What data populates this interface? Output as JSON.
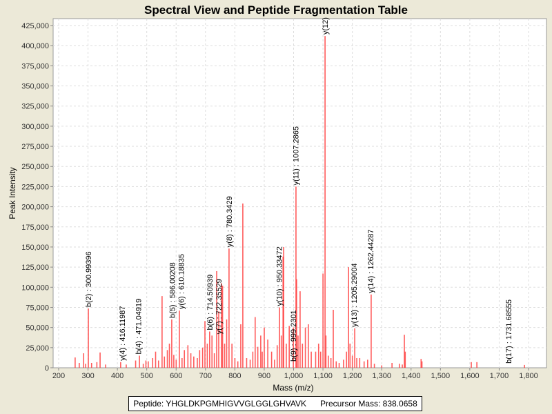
{
  "chart_data": {
    "type": "bar",
    "title": "Spectral View and Peptide Fragmentation Table",
    "xlabel": "Mass (m/z)",
    "ylabel": "Peak Intensity",
    "xlim": [
      180,
      1860
    ],
    "ylim": [
      0,
      433000
    ],
    "xticks": [
      200,
      300,
      400,
      500,
      600,
      700,
      800,
      900,
      1000,
      1100,
      1200,
      1300,
      1400,
      1500,
      1600,
      1700,
      1800
    ],
    "xtick_labels": [
      "200",
      "300",
      "400",
      "500",
      "600",
      "700",
      "800",
      "900",
      "1,000",
      "1,100",
      "1,200",
      "1,300",
      "1,400",
      "1,500",
      "1,600",
      "1,700",
      "1,800"
    ],
    "yticks": [
      0,
      25000,
      50000,
      75000,
      100000,
      125000,
      150000,
      175000,
      200000,
      225000,
      250000,
      275000,
      300000,
      325000,
      350000,
      375000,
      400000,
      425000
    ],
    "ytick_labels": [
      "0",
      "25,000",
      "50,000",
      "75,000",
      "100,000",
      "125,000",
      "150,000",
      "175,000",
      "200,000",
      "225,000",
      "250,000",
      "275,000",
      "300,000",
      "325,000",
      "350,000",
      "375,000",
      "400,000",
      "425,000"
    ],
    "grid": true,
    "color": "#ff4040",
    "peaks": [
      [
        256,
        12800
      ],
      [
        270,
        6000
      ],
      [
        285,
        18000
      ],
      [
        292,
        5000
      ],
      [
        301,
        73600
      ],
      [
        312,
        6000
      ],
      [
        330,
        7000
      ],
      [
        341,
        19000
      ],
      [
        360,
        4000
      ],
      [
        411,
        7000
      ],
      [
        430,
        4000
      ],
      [
        462,
        9000
      ],
      [
        475,
        15000
      ],
      [
        488,
        5000
      ],
      [
        497,
        9000
      ],
      [
        505,
        8000
      ],
      [
        520,
        12000
      ],
      [
        530,
        20000
      ],
      [
        540,
        9000
      ],
      [
        552,
        89000
      ],
      [
        560,
        14000
      ],
      [
        570,
        22000
      ],
      [
        577,
        30000
      ],
      [
        585,
        60000
      ],
      [
        592,
        16000
      ],
      [
        600,
        10000
      ],
      [
        611,
        71000
      ],
      [
        620,
        12000
      ],
      [
        628,
        22000
      ],
      [
        640,
        28000
      ],
      [
        650,
        18000
      ],
      [
        660,
        14000
      ],
      [
        672,
        12000
      ],
      [
        680,
        22000
      ],
      [
        690,
        25000
      ],
      [
        698,
        58000
      ],
      [
        706,
        30000
      ],
      [
        714,
        45000
      ],
      [
        722,
        40000
      ],
      [
        730,
        18000
      ],
      [
        738,
        120000
      ],
      [
        745,
        70000
      ],
      [
        754,
        105000
      ],
      [
        758,
        102000
      ],
      [
        765,
        30000
      ],
      [
        772,
        60000
      ],
      [
        780,
        148000
      ],
      [
        790,
        30000
      ],
      [
        800,
        12000
      ],
      [
        810,
        8000
      ],
      [
        820,
        54000
      ],
      [
        827,
        204000
      ],
      [
        840,
        12000
      ],
      [
        852,
        10000
      ],
      [
        861,
        20000
      ],
      [
        869,
        63000
      ],
      [
        878,
        26000
      ],
      [
        888,
        40000
      ],
      [
        893,
        20000
      ],
      [
        900,
        50000
      ],
      [
        912,
        35000
      ],
      [
        925,
        20000
      ],
      [
        935,
        10000
      ],
      [
        944,
        28000
      ],
      [
        952,
        75000
      ],
      [
        958,
        40000
      ],
      [
        964,
        138000
      ],
      [
        966,
        150000
      ],
      [
        975,
        30000
      ],
      [
        985,
        52000
      ],
      [
        999,
        50000
      ],
      [
        1008,
        225000
      ],
      [
        1010,
        110000
      ],
      [
        1015,
        40000
      ],
      [
        1022,
        95000
      ],
      [
        1030,
        30000
      ],
      [
        1040,
        50000
      ],
      [
        1050,
        54000
      ],
      [
        1060,
        20000
      ],
      [
        1075,
        20000
      ],
      [
        1085,
        30000
      ],
      [
        1092,
        20000
      ],
      [
        1100,
        117000
      ],
      [
        1107,
        412000
      ],
      [
        1110,
        40000
      ],
      [
        1118,
        15000
      ],
      [
        1127,
        12000
      ],
      [
        1135,
        72000
      ],
      [
        1145,
        8000
      ],
      [
        1155,
        6000
      ],
      [
        1170,
        10000
      ],
      [
        1180,
        20000
      ],
      [
        1187,
        125000
      ],
      [
        1192,
        30000
      ],
      [
        1200,
        15000
      ],
      [
        1208,
        49000
      ],
      [
        1215,
        12000
      ],
      [
        1225,
        12000
      ],
      [
        1240,
        8000
      ],
      [
        1252,
        10000
      ],
      [
        1264,
        91000
      ],
      [
        1275,
        5000
      ],
      [
        1300,
        3000
      ],
      [
        1335,
        6000
      ],
      [
        1360,
        5000
      ],
      [
        1370,
        4000
      ],
      [
        1377,
        41000
      ],
      [
        1380,
        20000
      ],
      [
        1434,
        11000
      ],
      [
        1437,
        8000
      ],
      [
        1605,
        7000
      ],
      [
        1624,
        7000
      ],
      [
        1786,
        3500
      ]
    ],
    "annotations": [
      {
        "mass": 300.99396,
        "intensity": 73600,
        "label": "b(2) : 300.99396"
      },
      {
        "mass": 416.11987,
        "intensity": 7000,
        "label": "y(4) : 416.11987"
      },
      {
        "mass": 471.04919,
        "intensity": 15000,
        "label": "b(4) : 471.04919"
      },
      {
        "mass": 586.00208,
        "intensity": 60000,
        "label": "b(5) : 586.00208"
      },
      {
        "mass": 610.18835,
        "intensity": 71000,
        "label": "y(6) : 610.18835"
      },
      {
        "mass": 714.50939,
        "intensity": 45000,
        "label": "b(6) : 714.50939"
      },
      {
        "mass": 722.35529,
        "intensity": 40000,
        "label": "y(7) : 722.35529"
      },
      {
        "mass": 780.3429,
        "intensity": 148000,
        "label": "y(8) : 780.3429"
      },
      {
        "mass": 950.33472,
        "intensity": 75000,
        "label": "y(10) : 950.33472"
      },
      {
        "mass": 999.2301,
        "intensity": 6000,
        "label": "b(9) : 999.2301"
      },
      {
        "mass": 1007.2865,
        "intensity": 225000,
        "label": "y(11) : 1007.2865"
      },
      {
        "mass": 1106.5,
        "intensity": 412000,
        "label": "y(12)"
      },
      {
        "mass": 1205.29004,
        "intensity": 49000,
        "label": "y(13) : 1205.29004"
      },
      {
        "mass": 1262.44287,
        "intensity": 91000,
        "label": "y(14) : 1262.44287"
      },
      {
        "mass": 1731.68555,
        "intensity": 3500,
        "label": "b(17) : 1731.68555"
      }
    ]
  },
  "legend": {
    "peptide": "Peptide: YHGLDKPGMHIGVVGLGGLGHVAVK",
    "precursor": "Precursor Mass: 838.0658"
  }
}
